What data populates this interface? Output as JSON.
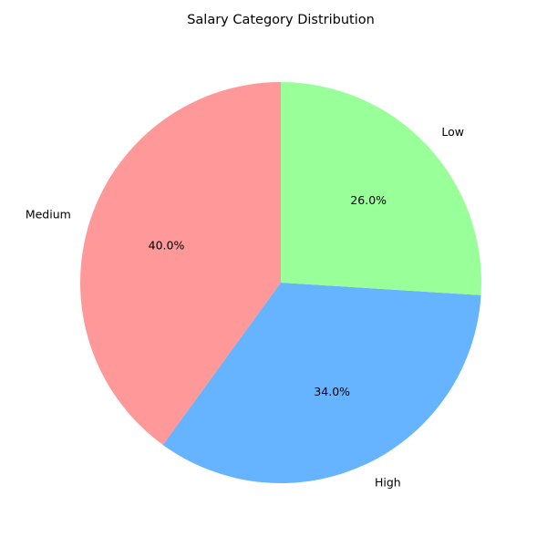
{
  "chart_data": {
    "type": "pie",
    "title": "Salary Category Distribution",
    "categories": [
      "Medium",
      "High",
      "Low"
    ],
    "values": [
      40.0,
      34.0,
      26.0
    ],
    "percent_labels": [
      "40.0%",
      "34.0%",
      "26.0%"
    ],
    "colors": [
      "#ff9999",
      "#66b3ff",
      "#99ff99"
    ],
    "start_angle_deg": 90,
    "direction": "counterclockwise",
    "legend": "none"
  }
}
